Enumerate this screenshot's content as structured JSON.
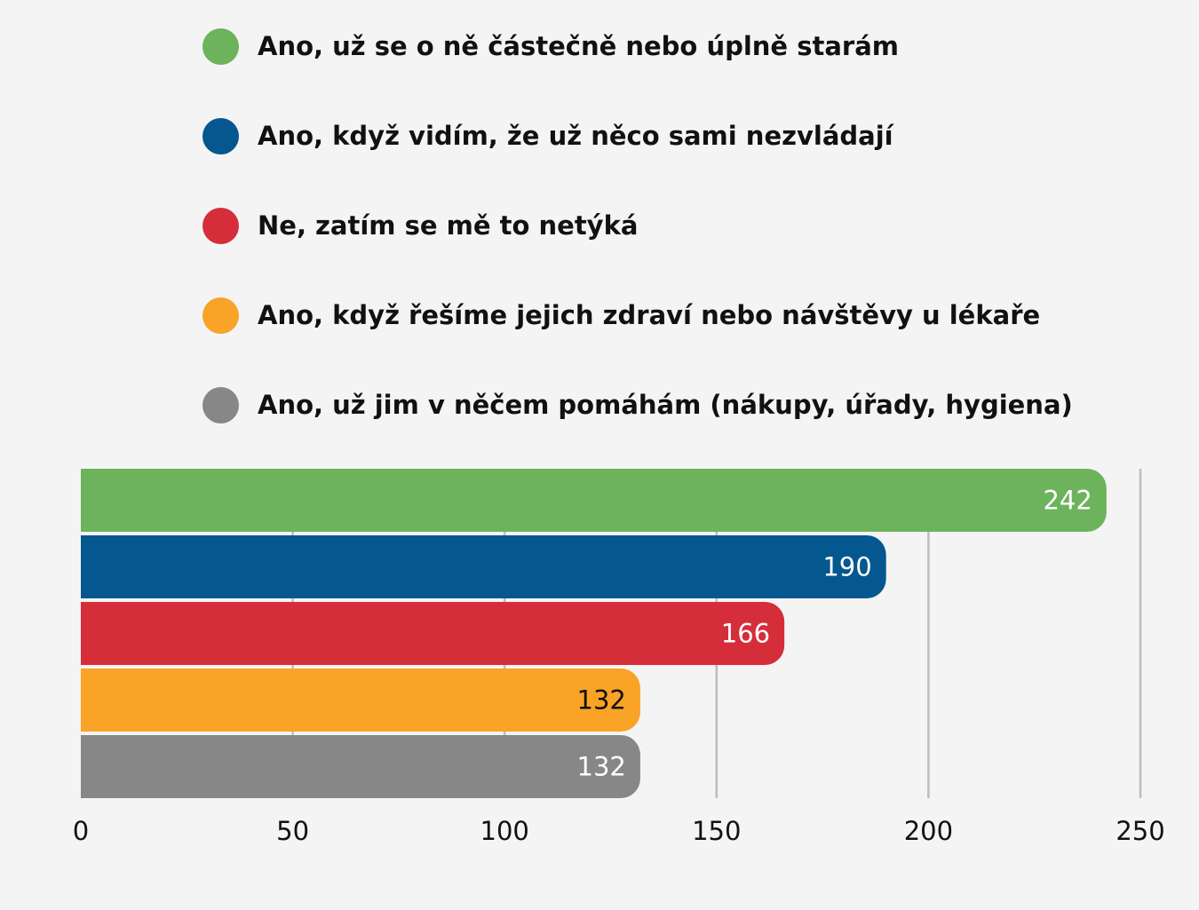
{
  "chart_data": {
    "type": "bar",
    "orientation": "horizontal",
    "categories": [
      "Ano, už se o ně částečně nebo úplně starám",
      "Ano, když vidím, že už něco sami nezvládají",
      "Ne, zatím se mě to netýká",
      "Ano, když řešíme jejich zdraví nebo návštěvy u lékaře",
      "Ano, už jim v něčem pomáhám (nákupy, úřady, hygiena)"
    ],
    "values": [
      242,
      190,
      166,
      132,
      132
    ],
    "value_labels": [
      "242",
      "190",
      "166",
      "132",
      "132"
    ],
    "colors": [
      "#6db35b",
      "#05578f",
      "#d62d3a",
      "#f9a327",
      "#878787"
    ],
    "label_colors": [
      "#ffffff",
      "#ffffff",
      "#ffffff",
      "#111111",
      "#ffffff"
    ],
    "xlim": [
      0,
      250
    ],
    "ticks": [
      0,
      50,
      100,
      150,
      200,
      250
    ],
    "tick_labels": [
      "0",
      "50",
      "100",
      "150",
      "200",
      "250"
    ],
    "grid": true,
    "legend": "top"
  }
}
